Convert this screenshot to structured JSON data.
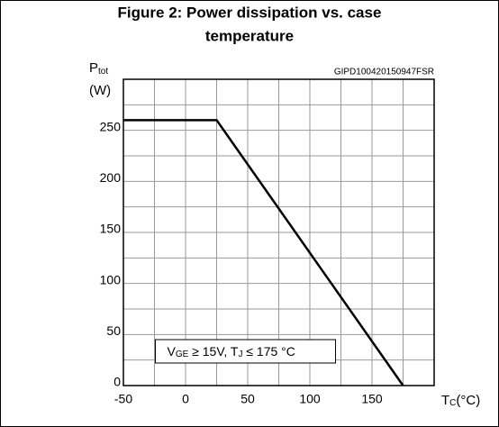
{
  "chart_data": {
    "type": "line",
    "title": [
      "Figure 2: Power dissipation vs. case",
      "temperature"
    ],
    "code": "GIPD100420150947FSR",
    "ylabel": {
      "main": "P",
      "sub": "tot",
      "unit": "(W)"
    },
    "xlabel": {
      "main": "T",
      "sub": "C",
      "unit": "(°C)"
    },
    "annotation": [
      "V",
      "GE",
      " ≥ 15V, T",
      "J",
      " ≤ 175 °C"
    ],
    "series": [
      {
        "name": "Ptot",
        "color": "#000000",
        "x": [
          -50,
          25,
          175
        ],
        "values": [
          260,
          260,
          0
        ]
      }
    ],
    "xlim": [
      -50,
      200
    ],
    "xticks": [
      -50,
      0,
      50,
      100,
      150
    ],
    "xgrid": [
      -25,
      25,
      75,
      125,
      175
    ],
    "ylim": [
      0,
      300
    ],
    "yticks": [
      0,
      50,
      100,
      150,
      200,
      250
    ],
    "ygrid": [
      25,
      75,
      125,
      175,
      225,
      275
    ],
    "grid": true
  }
}
